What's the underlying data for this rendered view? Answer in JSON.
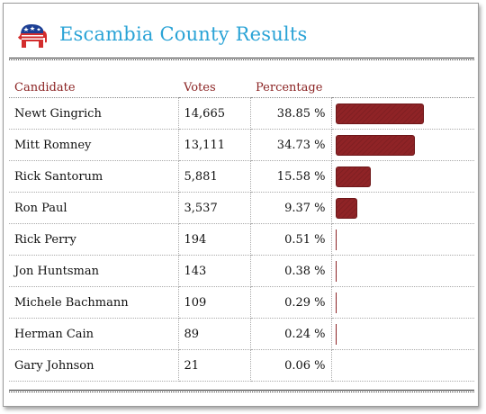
{
  "header": {
    "title": "Escambia County Results",
    "logo_icon": "republican-elephant-icon"
  },
  "colors": {
    "title": "#2aa3d6",
    "header_text": "#8b2323",
    "bar": "#8f2326"
  },
  "chart_data": {
    "type": "table",
    "columns": [
      "Candidate",
      "Votes",
      "Percentage"
    ],
    "rows": [
      {
        "candidate": "Newt Gingrich",
        "votes": "14,665",
        "percentage": "38.85 %",
        "pct_value": 38.85
      },
      {
        "candidate": "Mitt Romney",
        "votes": "13,111",
        "percentage": "34.73 %",
        "pct_value": 34.73
      },
      {
        "candidate": "Rick Santorum",
        "votes": "5,881",
        "percentage": "15.58 %",
        "pct_value": 15.58
      },
      {
        "candidate": "Ron Paul",
        "votes": "3,537",
        "percentage": "9.37 %",
        "pct_value": 9.37
      },
      {
        "candidate": "Rick Perry",
        "votes": "194",
        "percentage": "0.51 %",
        "pct_value": 0.51
      },
      {
        "candidate": "Jon Huntsman",
        "votes": "143",
        "percentage": "0.38 %",
        "pct_value": 0.38
      },
      {
        "candidate": "Michele Bachmann",
        "votes": "109",
        "percentage": "0.29 %",
        "pct_value": 0.29
      },
      {
        "candidate": "Herman Cain",
        "votes": "89",
        "percentage": "0.24 %",
        "pct_value": 0.24
      },
      {
        "candidate": "Gary Johnson",
        "votes": "21",
        "percentage": "0.06 %",
        "pct_value": 0.06
      }
    ]
  }
}
